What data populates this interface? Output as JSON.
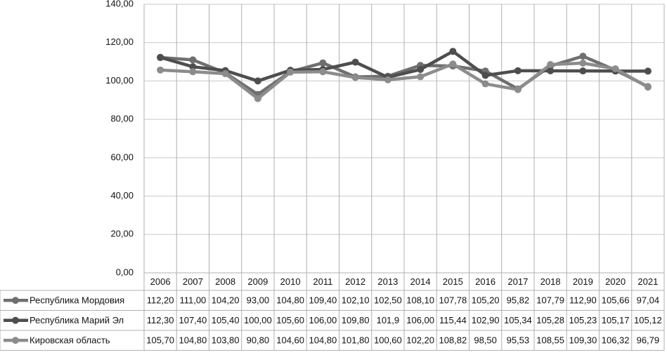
{
  "chart_data": {
    "type": "line",
    "categories": [
      "2006",
      "2007",
      "2008",
      "2009",
      "2010",
      "2011",
      "2012",
      "2013",
      "2014",
      "2015",
      "2016",
      "2017",
      "2018",
      "2019",
      "2020",
      "2021"
    ],
    "ylim": [
      0,
      140
    ],
    "yticks": [
      {
        "value": 0,
        "label": "0,00"
      },
      {
        "value": 20,
        "label": "20,00"
      },
      {
        "value": 40,
        "label": "40,00"
      },
      {
        "value": 60,
        "label": "60,00"
      },
      {
        "value": 80,
        "label": "80,00"
      },
      {
        "value": 100,
        "label": "100,00"
      },
      {
        "value": 120,
        "label": "120,00"
      },
      {
        "value": 140,
        "label": "140,00"
      }
    ],
    "grid": true,
    "series": [
      {
        "name": "Республика Мордовия",
        "color": "#6f6f6f",
        "values": [
          112.2,
          111.0,
          104.2,
          93.0,
          104.8,
          109.4,
          102.1,
          102.5,
          108.1,
          107.78,
          105.2,
          95.82,
          107.79,
          112.9,
          105.66,
          97.04
        ],
        "value_labels": [
          "112,20",
          "111,00",
          "104,20",
          "93,00",
          "104,80",
          "109,40",
          "102,10",
          "102,50",
          "108,10",
          "107,78",
          "105,20",
          "95,82",
          "107,79",
          "112,90",
          "105,66",
          "97,04"
        ]
      },
      {
        "name": "Республика Марий Эл",
        "color": "#4e4e4e",
        "values": [
          112.3,
          107.4,
          105.4,
          100.0,
          105.6,
          106.0,
          109.8,
          101.9,
          106.0,
          115.44,
          102.9,
          105.34,
          105.28,
          105.23,
          105.17,
          105.12
        ],
        "value_labels": [
          "112,30",
          "107,40",
          "105,40",
          "100,00",
          "105,60",
          "106,00",
          "109,80",
          "101,9",
          "106,00",
          "115,44",
          "102,90",
          "105,34",
          "105,28",
          "105,23",
          "105,17",
          "105,12"
        ]
      },
      {
        "name": "Кировская область",
        "color": "#8c8c8c",
        "values": [
          105.7,
          104.8,
          103.8,
          90.8,
          104.6,
          104.8,
          101.8,
          100.6,
          102.2,
          108.82,
          98.5,
          95.53,
          108.55,
          109.3,
          106.32,
          96.79
        ],
        "value_labels": [
          "105,70",
          "104,80",
          "103,80",
          "90,80",
          "104,60",
          "104,80",
          "101,80",
          "100,60",
          "102,20",
          "108,82",
          "98,50",
          "95,53",
          "108,55",
          "109,30",
          "106,32",
          "96,79"
        ]
      }
    ]
  }
}
